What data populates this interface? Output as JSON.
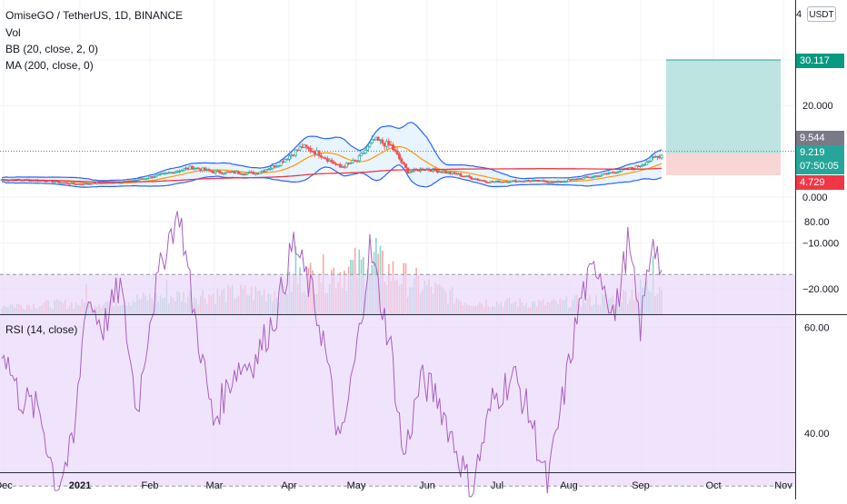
{
  "header": {
    "symbol_line": "OmiseGO / TetherUS, 1D, BINANCE",
    "vol_label": "Vol",
    "bb_label": "BB (20, close, 2, 0)",
    "ma_label": "MA (200, close, 0)",
    "rsi_label": "RSI (14, close)",
    "currency": "USDT"
  },
  "price_tags": {
    "target": "30.117",
    "current_close": "9.544",
    "last_price": "9.219",
    "countdown": "07:50:05",
    "stop": "4.729"
  },
  "colors": {
    "up": "#26a69a",
    "down": "#ef5350",
    "bb": "#2962ff",
    "bb_fill": "#2196f3",
    "ma": "#e65100",
    "rsi_line": "#a85fc0",
    "rsi_band": "#e9d8fb",
    "profit": "#b2dfdb",
    "loss": "#f8d1d1",
    "ma_short": "#ff9800"
  },
  "chart_data": {
    "type": "line",
    "price_axis": {
      "ticks": [
        "20.000",
        "0.000",
        "−10.000",
        "−20.000"
      ],
      "values": [
        20,
        0,
        -10,
        -20
      ],
      "top_partial_tick": "4"
    },
    "rsi_axis": {
      "ticks": [
        "80.00",
        "60.00",
        "40.00"
      ],
      "values": [
        80,
        60,
        40
      ],
      "band": [
        30,
        70
      ]
    },
    "x_axis": {
      "labels": [
        "Dec",
        "2021",
        "Feb",
        "Mar",
        "Apr",
        "May",
        "Jun",
        "Jul",
        "Aug",
        "Sep",
        "Oct",
        "Nov"
      ]
    },
    "position": {
      "entry": 9.544,
      "target": 30.117,
      "stop": 4.729
    },
    "price_keypoints": [
      {
        "i": 0,
        "v": 3.8
      },
      {
        "i": 20,
        "v": 3.6
      },
      {
        "i": 35,
        "v": 2.8
      },
      {
        "i": 60,
        "v": 3.4
      },
      {
        "i": 75,
        "v": 4.8
      },
      {
        "i": 90,
        "v": 6.5
      },
      {
        "i": 100,
        "v": 5.5
      },
      {
        "i": 120,
        "v": 5.2
      },
      {
        "i": 130,
        "v": 7.0
      },
      {
        "i": 142,
        "v": 11.0
      },
      {
        "i": 150,
        "v": 9.5
      },
      {
        "i": 160,
        "v": 6.5
      },
      {
        "i": 168,
        "v": 8.0
      },
      {
        "i": 176,
        "v": 12.5
      },
      {
        "i": 184,
        "v": 11.2
      },
      {
        "i": 192,
        "v": 5.5
      },
      {
        "i": 200,
        "v": 6.2
      },
      {
        "i": 215,
        "v": 5.0
      },
      {
        "i": 230,
        "v": 3.3
      },
      {
        "i": 250,
        "v": 3.6
      },
      {
        "i": 262,
        "v": 3.2
      },
      {
        "i": 280,
        "v": 4.5
      },
      {
        "i": 300,
        "v": 6.5
      },
      {
        "i": 308,
        "v": 8.5
      },
      {
        "i": 312,
        "v": 9.2
      }
    ],
    "rsi_keypoints": [
      {
        "i": 0,
        "v": 57
      },
      {
        "i": 8,
        "v": 47
      },
      {
        "i": 18,
        "v": 44
      },
      {
        "i": 26,
        "v": 30
      },
      {
        "i": 34,
        "v": 38
      },
      {
        "i": 40,
        "v": 66
      },
      {
        "i": 48,
        "v": 60
      },
      {
        "i": 56,
        "v": 68
      },
      {
        "i": 64,
        "v": 44
      },
      {
        "i": 70,
        "v": 62
      },
      {
        "i": 78,
        "v": 76
      },
      {
        "i": 84,
        "v": 82
      },
      {
        "i": 90,
        "v": 65
      },
      {
        "i": 100,
        "v": 42
      },
      {
        "i": 110,
        "v": 52
      },
      {
        "i": 120,
        "v": 54
      },
      {
        "i": 130,
        "v": 63
      },
      {
        "i": 138,
        "v": 76
      },
      {
        "i": 146,
        "v": 67
      },
      {
        "i": 152,
        "v": 58
      },
      {
        "i": 160,
        "v": 37
      },
      {
        "i": 168,
        "v": 56
      },
      {
        "i": 174,
        "v": 75
      },
      {
        "i": 184,
        "v": 56
      },
      {
        "i": 190,
        "v": 35
      },
      {
        "i": 198,
        "v": 50
      },
      {
        "i": 206,
        "v": 47
      },
      {
        "i": 214,
        "v": 38
      },
      {
        "i": 222,
        "v": 29
      },
      {
        "i": 232,
        "v": 46
      },
      {
        "i": 242,
        "v": 51
      },
      {
        "i": 250,
        "v": 43
      },
      {
        "i": 258,
        "v": 30
      },
      {
        "i": 266,
        "v": 48
      },
      {
        "i": 274,
        "v": 66
      },
      {
        "i": 282,
        "v": 72
      },
      {
        "i": 290,
        "v": 62
      },
      {
        "i": 296,
        "v": 76
      },
      {
        "i": 302,
        "v": 60
      },
      {
        "i": 308,
        "v": 78
      },
      {
        "i": 312,
        "v": 70
      }
    ],
    "volume_keypoints": [
      {
        "i": 0,
        "v": 1.0
      },
      {
        "i": 40,
        "v": 1.2
      },
      {
        "i": 80,
        "v": 2.0
      },
      {
        "i": 130,
        "v": 2.5
      },
      {
        "i": 142,
        "v": 4.0
      },
      {
        "i": 176,
        "v": 5.5
      },
      {
        "i": 190,
        "v": 4.0
      },
      {
        "i": 220,
        "v": 1.4
      },
      {
        "i": 260,
        "v": 1.2
      },
      {
        "i": 290,
        "v": 1.8
      },
      {
        "i": 312,
        "v": 3.5
      }
    ],
    "volume_spikes": [
      {
        "i": 139,
        "v": 7.5
      },
      {
        "i": 177,
        "v": 8.5
      },
      {
        "i": 173,
        "v": 5.0
      },
      {
        "i": 150,
        "v": 4.5
      },
      {
        "i": 308,
        "v": 6.5
      },
      {
        "i": 195,
        "v": 4.0
      },
      {
        "i": 40,
        "v": 3.3
      },
      {
        "i": 78,
        "v": 3.8
      }
    ]
  }
}
